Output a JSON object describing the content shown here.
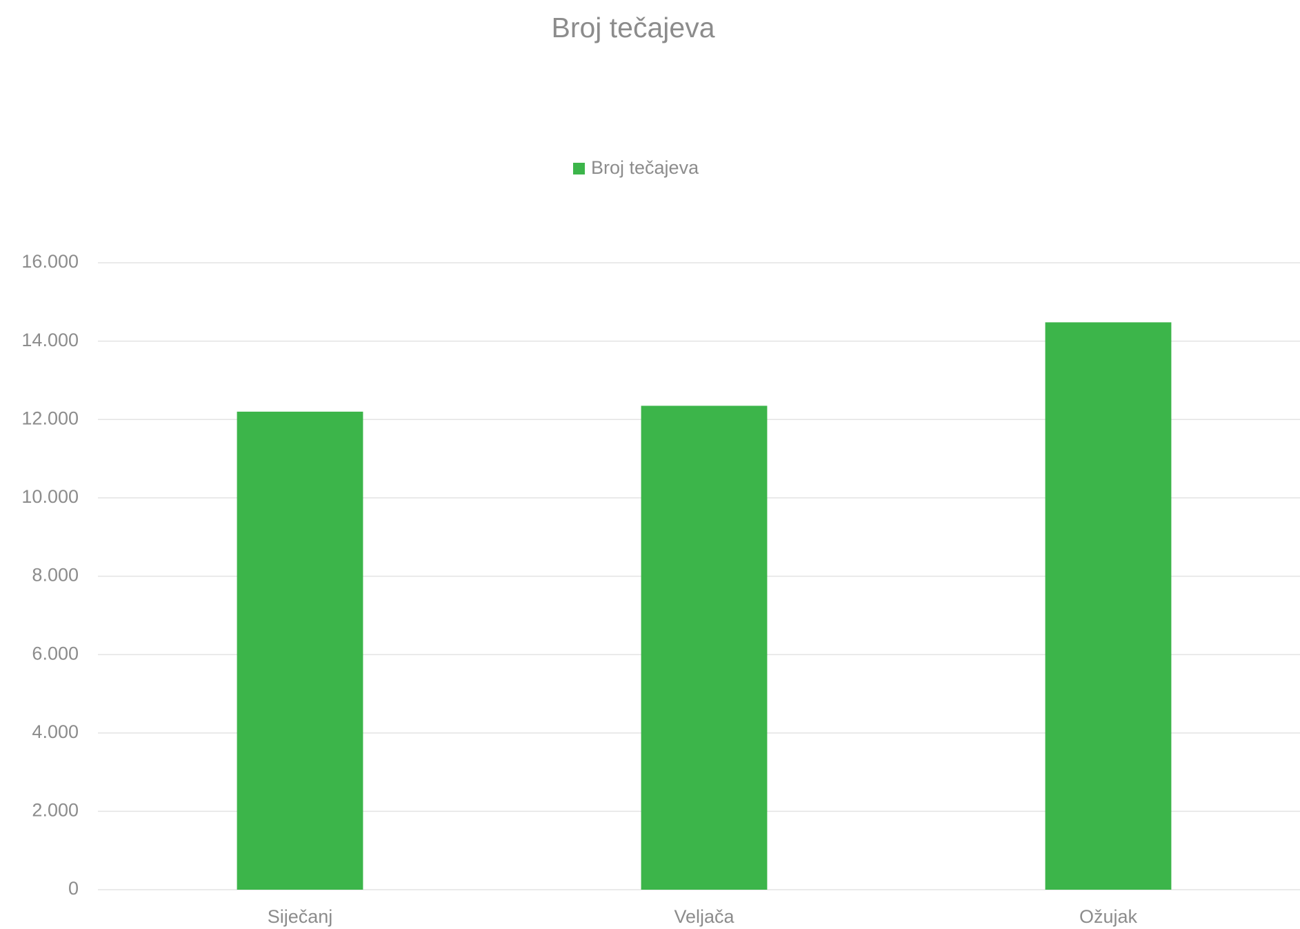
{
  "chart_data": {
    "type": "bar",
    "title": "Broj tečajeva",
    "categories": [
      "Siječanj",
      "Veljača",
      "Ožujak"
    ],
    "series": [
      {
        "name": "Broj tečajeva",
        "color": "#3cb54a",
        "values": [
          12200,
          12350,
          14480
        ]
      }
    ],
    "ylim": [
      0,
      16000
    ],
    "yticks": [
      0,
      {
        "value": 2000,
        "label": "2.000"
      },
      {
        "value": 4000,
        "label": "4.000"
      },
      {
        "value": 6000,
        "label": "6.000"
      },
      {
        "value": 8000,
        "label": "8.000"
      },
      {
        "value": 10000,
        "label": "10.000"
      },
      {
        "value": 12000,
        "label": "12.000"
      },
      {
        "value": 14000,
        "label": "14.000"
      },
      {
        "value": 16000,
        "label": "16.000"
      }
    ],
    "grid": true,
    "legend": "top"
  }
}
